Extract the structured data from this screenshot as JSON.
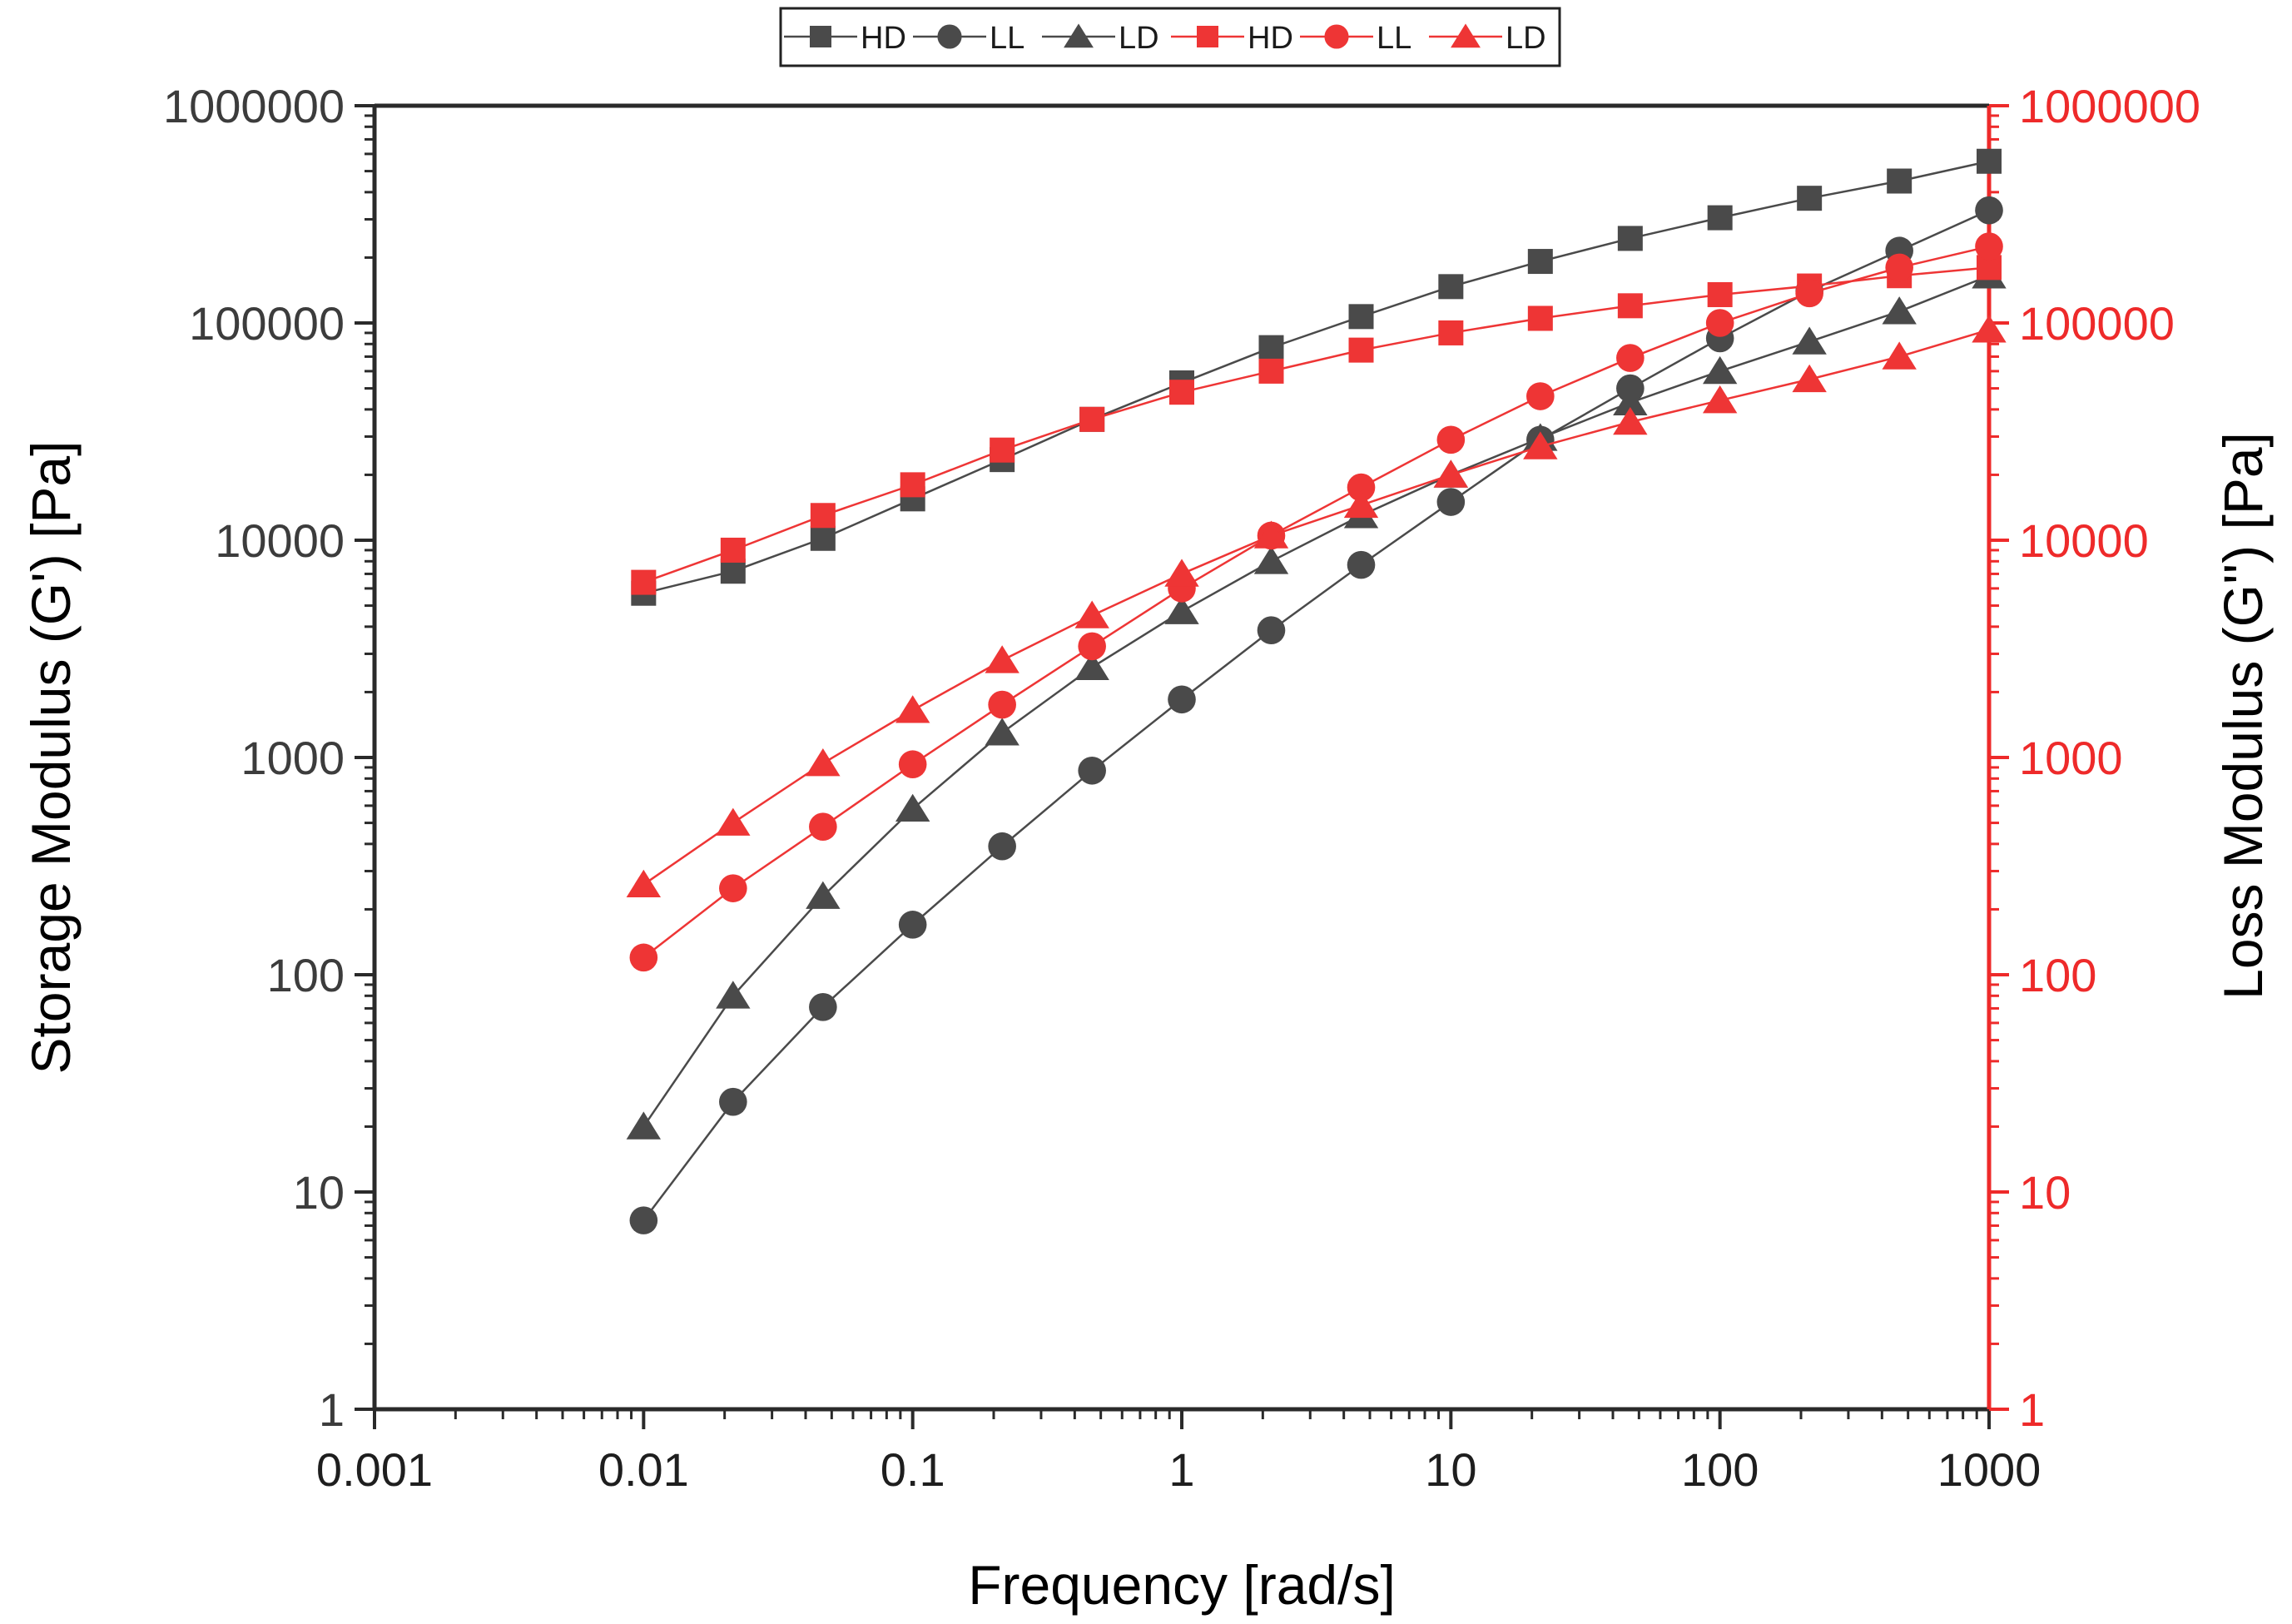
{
  "chart_data": {
    "type": "scatter",
    "title": "",
    "xlabel": "Frequency [rad/s]",
    "ylabel_left": "Storage Modulus (G') [Pa]",
    "ylabel_right": "Loss Modulus (G'') [Pa]",
    "xscale": "log",
    "yscale": "log",
    "xlim": [
      0.001,
      1000
    ],
    "ylim": [
      1,
      1000000
    ],
    "x_ticks": [
      "0.001",
      "0.01",
      "0.1",
      "1",
      "10",
      "100",
      "1000"
    ],
    "y_ticks": [
      "1",
      "10",
      "100",
      "1000",
      "10000",
      "100000",
      "1000000"
    ],
    "legend_position": "top-center",
    "colors": {
      "storage": "#4a4a4a",
      "loss": "#ee3535",
      "left_axis": "#2a2a2a",
      "right_axis": "#ee2a2a"
    },
    "x": [
      0.01,
      0.0215,
      0.0464,
      0.1,
      0.215,
      0.464,
      1.0,
      2.15,
      4.64,
      10,
      21.5,
      46.4,
      100,
      215,
      464,
      1000
    ],
    "series": [
      {
        "name": "HD",
        "modulus": "storage",
        "axis": "left",
        "marker": "square",
        "values": [
          5700,
          7200,
          10200,
          15500,
          23500,
          36000,
          53000,
          77000,
          107000,
          147000,
          192000,
          245000,
          305000,
          375000,
          450000,
          555000
        ]
      },
      {
        "name": "LL",
        "modulus": "storage",
        "axis": "left",
        "marker": "circle",
        "values": [
          7.4,
          26,
          71,
          170,
          390,
          870,
          1850,
          3850,
          7700,
          15000,
          29000,
          50000,
          85000,
          140000,
          215000,
          330000
        ]
      },
      {
        "name": "LD",
        "modulus": "storage",
        "axis": "left",
        "marker": "triangle",
        "values": [
          20,
          80,
          230,
          580,
          1300,
          2600,
          4700,
          8000,
          13000,
          20000,
          29500,
          43000,
          60000,
          82000,
          113000,
          165000
        ]
      },
      {
        "name": "HD",
        "modulus": "loss",
        "axis": "right",
        "marker": "square",
        "values": [
          6400,
          9000,
          13000,
          18000,
          26000,
          36000,
          48000,
          60000,
          75000,
          90000,
          105000,
          120000,
          135000,
          148000,
          165000,
          180000
        ]
      },
      {
        "name": "LL",
        "modulus": "loss",
        "axis": "right",
        "marker": "circle",
        "values": [
          120,
          250,
          480,
          930,
          1750,
          3250,
          6000,
          10500,
          17500,
          29000,
          46000,
          69000,
          100000,
          137000,
          180000,
          225000
        ]
      },
      {
        "name": "LD",
        "modulus": "loss",
        "axis": "right",
        "marker": "triangle",
        "values": [
          260,
          500,
          940,
          1650,
          2800,
          4500,
          7000,
          10500,
          14500,
          20000,
          27000,
          35000,
          44000,
          55000,
          70000,
          93000
        ]
      }
    ]
  }
}
